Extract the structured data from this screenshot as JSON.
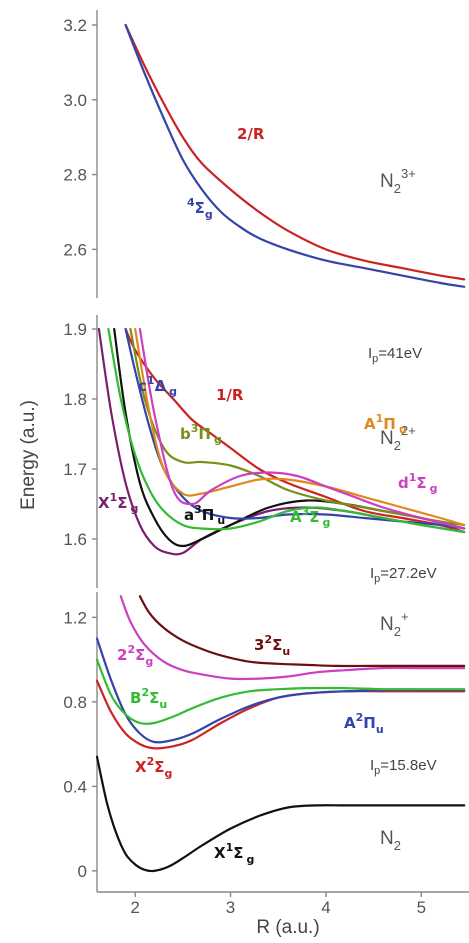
{
  "chart_data": [
    {
      "type": "line",
      "species": "N2 3+",
      "ylim": [
        2.47,
        3.24
      ],
      "yticks": [
        "3.2",
        "3.0",
        "2.8",
        "2.6"
      ],
      "series": [
        {
          "name": "2/R",
          "color": "#cc2222",
          "x": [
            1.9,
            2.1,
            2.3,
            2.5,
            2.7,
            3.0,
            3.3,
            3.6,
            4.0,
            4.4,
            4.8,
            5.2,
            5.45
          ],
          "y": [
            3.2,
            3.09,
            2.99,
            2.9,
            2.83,
            2.76,
            2.7,
            2.65,
            2.6,
            2.57,
            2.55,
            2.53,
            2.52
          ]
        },
        {
          "name": "4Σg",
          "color": "#3344aa",
          "x": [
            1.9,
            2.1,
            2.3,
            2.5,
            2.7,
            2.9,
            3.1,
            3.3,
            3.6,
            4.0,
            4.4,
            4.8,
            5.2,
            5.45
          ],
          "y": [
            3.2,
            3.07,
            2.95,
            2.84,
            2.76,
            2.7,
            2.66,
            2.63,
            2.6,
            2.57,
            2.55,
            2.53,
            2.51,
            2.5
          ]
        }
      ]
    },
    {
      "type": "line",
      "species": "N2 2+",
      "ylim": [
        1.53,
        1.92
      ],
      "yticks": [
        "1.9",
        "1.8",
        "1.7",
        "1.6"
      ],
      "ip_label": "Ip=41eV",
      "series": [
        {
          "name": "1/R",
          "color": "#cc2222",
          "x": [
            1.9,
            2.0,
            2.2,
            2.4,
            2.6,
            2.8,
            3.0,
            3.3,
            3.6,
            4.0,
            4.4,
            4.8,
            5.2,
            5.45
          ],
          "y": [
            1.9,
            1.87,
            1.83,
            1.8,
            1.77,
            1.75,
            1.73,
            1.7,
            1.68,
            1.66,
            1.64,
            1.63,
            1.62,
            1.61
          ]
        },
        {
          "name": "X1Σg",
          "color": "#7a1f6e",
          "x": [
            1.62,
            1.75,
            1.9,
            2.05,
            2.2,
            2.35,
            2.5,
            2.7,
            3.0,
            3.4,
            3.8,
            4.2,
            4.6,
            5.0,
            5.45
          ],
          "y": [
            1.9,
            1.78,
            1.68,
            1.62,
            1.59,
            1.58,
            1.58,
            1.6,
            1.62,
            1.64,
            1.645,
            1.64,
            1.63,
            1.62,
            1.61
          ]
        },
        {
          "name": "a3Πu",
          "color": "#111111",
          "x": [
            1.78,
            1.9,
            2.05,
            2.2,
            2.35,
            2.5,
            2.7,
            3.0,
            3.4,
            3.8,
            4.2,
            4.6,
            5.0,
            5.45
          ],
          "y": [
            1.9,
            1.78,
            1.68,
            1.63,
            1.6,
            1.59,
            1.6,
            1.62,
            1.645,
            1.655,
            1.65,
            1.64,
            1.63,
            1.615
          ]
        },
        {
          "name": "c1Δg",
          "color": "#3344aa",
          "x": [
            1.9,
            2.0,
            2.15,
            2.3,
            2.5,
            2.7,
            3.0,
            3.3,
            3.6,
            4.0,
            4.4,
            4.8,
            5.2,
            5.45
          ],
          "y": [
            1.9,
            1.84,
            1.76,
            1.7,
            1.66,
            1.64,
            1.63,
            1.63,
            1.635,
            1.635,
            1.63,
            1.625,
            1.62,
            1.615
          ]
        },
        {
          "name": "A3Σg",
          "color": "#33bb33",
          "x": [
            1.72,
            1.85,
            2.0,
            2.15,
            2.3,
            2.5,
            2.7,
            3.0,
            3.3,
            3.6,
            3.9,
            4.2,
            4.6,
            5.0,
            5.45
          ],
          "y": [
            1.9,
            1.8,
            1.72,
            1.67,
            1.64,
            1.62,
            1.615,
            1.615,
            1.625,
            1.64,
            1.645,
            1.64,
            1.63,
            1.62,
            1.61
          ]
        },
        {
          "name": "b3Πg",
          "color": "#7a8f1a",
          "x": [
            1.95,
            2.1,
            2.3,
            2.5,
            2.7,
            3.0,
            3.3,
            3.6,
            4.0,
            4.4,
            4.8,
            5.2,
            5.45
          ],
          "y": [
            1.9,
            1.8,
            1.73,
            1.71,
            1.71,
            1.705,
            1.69,
            1.67,
            1.655,
            1.645,
            1.635,
            1.625,
            1.62
          ]
        },
        {
          "name": "A1Πu",
          "color": "#e08820",
          "x": [
            2.0,
            2.15,
            2.3,
            2.5,
            2.7,
            3.0,
            3.3,
            3.6,
            4.0,
            4.4,
            4.8,
            5.2,
            5.45
          ],
          "y": [
            1.9,
            1.78,
            1.7,
            1.665,
            1.665,
            1.675,
            1.685,
            1.685,
            1.675,
            1.66,
            1.645,
            1.63,
            1.62
          ]
        },
        {
          "name": "d1Σg",
          "color": "#cc3fbf",
          "x": [
            2.05,
            2.2,
            2.4,
            2.6,
            2.8,
            3.1,
            3.4,
            3.7,
            4.0,
            4.3,
            4.6,
            5.0,
            5.45
          ],
          "y": [
            1.9,
            1.78,
            1.67,
            1.65,
            1.67,
            1.69,
            1.695,
            1.69,
            1.675,
            1.66,
            1.645,
            1.63,
            1.615
          ]
        }
      ]
    },
    {
      "type": "line",
      "species": "N2 +",
      "ylim": [
        -0.1,
        1.32
      ],
      "yticks": [
        "1.2",
        "0.8",
        "0.4",
        "0"
      ],
      "xticks": [
        "2",
        "3",
        "4",
        "5"
      ],
      "xlim": [
        1.6,
        5.5
      ],
      "xlabel": "R (a.u.)",
      "ip_label": "Ip=27.2eV",
      "ip_label_2": "Ip=15.8eV",
      "series": [
        {
          "name": "X1Σg (N2)",
          "color": "#111111",
          "x": [
            1.6,
            1.7,
            1.8,
            1.9,
            2.0,
            2.1,
            2.2,
            2.35,
            2.5,
            2.7,
            3.0,
            3.3,
            3.6,
            3.9,
            4.2,
            4.6,
            5.0,
            5.45
          ],
          "y": [
            0.54,
            0.33,
            0.18,
            0.08,
            0.03,
            0.005,
            0.0,
            0.02,
            0.06,
            0.12,
            0.2,
            0.26,
            0.3,
            0.31,
            0.31,
            0.31,
            0.31,
            0.31
          ]
        },
        {
          "name": "X2Σg",
          "color": "#cc2222",
          "x": [
            1.6,
            1.75,
            1.9,
            2.05,
            2.2,
            2.4,
            2.6,
            2.9,
            3.2,
            3.5,
            3.8,
            4.2,
            4.6,
            5.0,
            5.45
          ],
          "y": [
            0.9,
            0.75,
            0.65,
            0.6,
            0.58,
            0.59,
            0.62,
            0.7,
            0.77,
            0.82,
            0.84,
            0.85,
            0.85,
            0.85,
            0.85
          ]
        },
        {
          "name": "A2Πu",
          "color": "#3344aa",
          "x": [
            1.6,
            1.75,
            1.9,
            2.05,
            2.2,
            2.4,
            2.6,
            2.9,
            3.2,
            3.5,
            3.8,
            4.2,
            4.6,
            5.0,
            5.45
          ],
          "y": [
            1.1,
            0.9,
            0.74,
            0.65,
            0.61,
            0.62,
            0.65,
            0.72,
            0.78,
            0.82,
            0.84,
            0.85,
            0.855,
            0.855,
            0.855
          ]
        },
        {
          "name": "B2Σu",
          "color": "#33bb33",
          "x": [
            1.6,
            1.75,
            1.9,
            2.05,
            2.2,
            2.4,
            2.6,
            2.9,
            3.2,
            3.5,
            3.8,
            4.2,
            4.6,
            5.0,
            5.45
          ],
          "y": [
            1.0,
            0.83,
            0.74,
            0.7,
            0.7,
            0.73,
            0.77,
            0.82,
            0.85,
            0.86,
            0.865,
            0.865,
            0.86,
            0.86,
            0.86
          ]
        },
        {
          "name": "2Σg",
          "color": "#cc3fbf",
          "x": [
            1.85,
            1.95,
            2.1,
            2.3,
            2.5,
            2.7,
            3.0,
            3.3,
            3.6,
            3.9,
            4.2,
            4.6,
            5.0,
            5.45
          ],
          "y": [
            1.3,
            1.18,
            1.07,
            0.99,
            0.95,
            0.93,
            0.91,
            0.91,
            0.92,
            0.94,
            0.95,
            0.96,
            0.96,
            0.96
          ]
        },
        {
          "name": "32Σu",
          "color": "#6a1010",
          "x": [
            2.05,
            2.15,
            2.3,
            2.5,
            2.7,
            2.9,
            3.2,
            3.5,
            3.8,
            4.1,
            4.5,
            5.0,
            5.45
          ],
          "y": [
            1.3,
            1.22,
            1.15,
            1.09,
            1.05,
            1.02,
            0.99,
            0.98,
            0.975,
            0.97,
            0.97,
            0.97,
            0.97
          ]
        }
      ]
    }
  ],
  "labels": {
    "ylabel": "Energy (a.u.)",
    "species_n2_3plus": {
      "base": "N",
      "sub": "2",
      "sup": "3+"
    },
    "species_n2_2plus": {
      "base": "N",
      "sub": "2",
      "sup": "2+"
    },
    "species_n2_plus": {
      "base": "N",
      "sub": "2",
      "sup": "+"
    },
    "species_n2": {
      "base": "N",
      "sub": "2"
    },
    "ip_41": {
      "base": "I",
      "sub": "p",
      "rest": "=41eV"
    },
    "ip_27": {
      "base": "I",
      "sub": "p",
      "rest": "=27.2eV"
    },
    "ip_15": {
      "base": "I",
      "sub": "p",
      "rest": "=15.8eV"
    },
    "top": {
      "two_over_r": "2/R",
      "quartet": {
        "sup": "4",
        "sym": "Σ",
        "sub": "g"
      }
    },
    "mid": {
      "one_over_r": "1/R",
      "c1dg": {
        "a": "c",
        "sup": "1",
        "sym": "Δ",
        "sub": "g"
      },
      "b3pg": {
        "a": "b",
        "sup": "3",
        "sym": "Π",
        "sub": "g"
      },
      "a1pu": {
        "a": "A",
        "sup": "1",
        "sym": "Π",
        "sub": "u"
      },
      "d1sg": {
        "a": "d",
        "sup": "1",
        "sym": "Σ",
        "sub": "g"
      },
      "a3sg": {
        "a": "A",
        "sup": "3",
        "sym": "Σ",
        "sub": "g"
      },
      "x1sg": {
        "a": "X",
        "sup": "1",
        "sym": "Σ",
        "sub": "g"
      },
      "a3pu": {
        "a": "a",
        "sup": "3",
        "sym": "Π",
        "sub": "u"
      }
    },
    "bot": {
      "s32u": {
        "a": "3",
        "sup": "2",
        "sym": "Σ",
        "sub": "u"
      },
      "s22g": {
        "a": "2",
        "sup": "2",
        "sym": "Σ",
        "sub": "g"
      },
      "b2su": {
        "a": "B",
        "sup": "2",
        "sym": "Σ",
        "sub": "u"
      },
      "a2pu": {
        "a": "A",
        "sup": "2",
        "sym": "Π",
        "sub": "u"
      },
      "x2sg": {
        "a": "X",
        "sup": "2",
        "sym": "Σ",
        "sub": "g"
      },
      "x1sg": {
        "a": "X",
        "sup": "1",
        "sym": "Σ",
        "sub": "g"
      }
    }
  },
  "colors": {
    "red": "#cc2222",
    "blue": "#3344aa",
    "green": "#33bb33",
    "black": "#111111",
    "magenta": "#cc3fbf",
    "purple": "#7a1f6e",
    "olive": "#7a8f1a",
    "orange": "#e08820",
    "darkred": "#6a1010"
  }
}
